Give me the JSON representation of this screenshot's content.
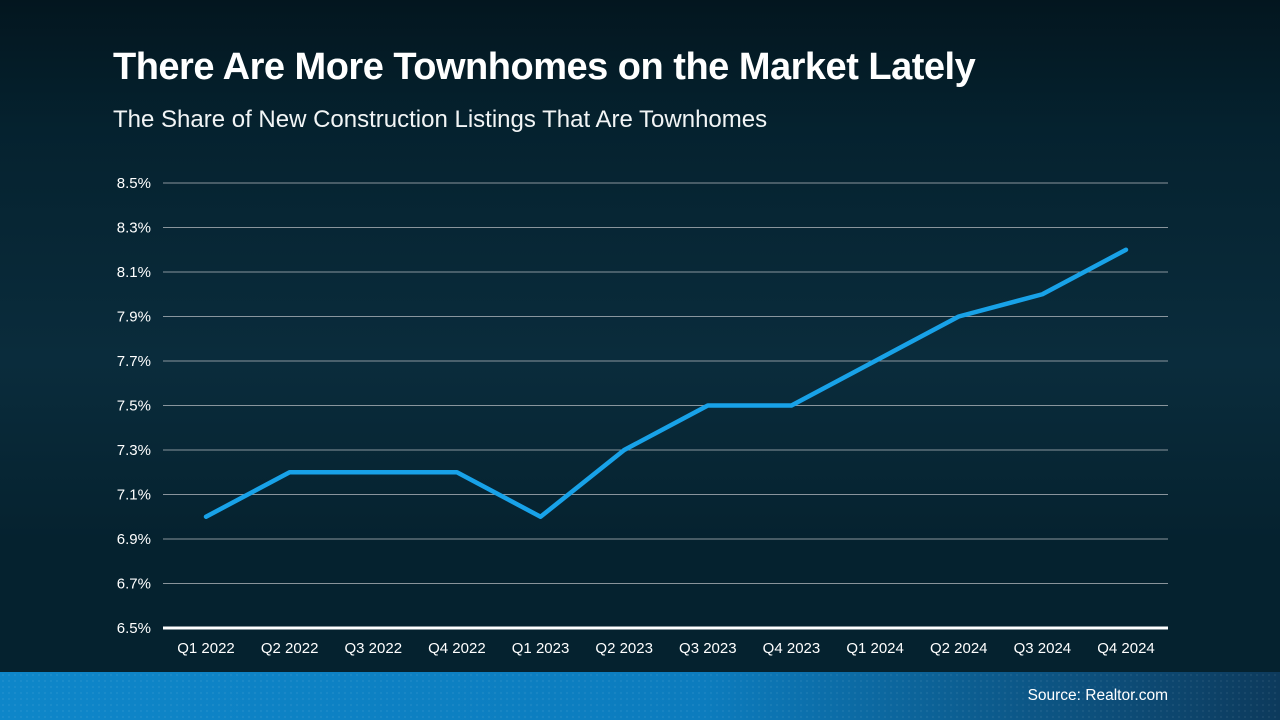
{
  "header": {
    "title": "There Are More Townhomes on the Market Lately",
    "subtitle": "The Share of New Construction Listings That Are Townhomes"
  },
  "footer": {
    "source": "Source: Realtor.com"
  },
  "theme": {
    "background_top": "#03161f",
    "background_mid": "#0a2c3c",
    "background_base": "#05222f",
    "line_color": "#18a2e8",
    "gridline_color": "#aab1b7",
    "axis_color": "#ffffff",
    "text_color": "#ffffff",
    "footer_gradient": [
      "#0e86c9",
      "#0c7cbe",
      "#0d3a5c"
    ]
  },
  "chart_data": {
    "type": "line",
    "title": "There Are More Townhomes on the Market Lately",
    "subtitle": "The Share of New Construction Listings That Are Townhomes",
    "categories": [
      "Q1 2022",
      "Q2 2022",
      "Q3 2022",
      "Q4 2022",
      "Q1 2023",
      "Q2 2023",
      "Q3 2023",
      "Q4 2023",
      "Q1 2024",
      "Q2 2024",
      "Q3 2024",
      "Q4 2024"
    ],
    "series": [
      {
        "name": "Share of new construction listings that are townhomes",
        "values": [
          7.0,
          7.2,
          7.2,
          7.2,
          7.0,
          7.3,
          7.5,
          7.5,
          7.7,
          7.9,
          8.0,
          8.2
        ]
      }
    ],
    "ylim": [
      6.5,
      8.5
    ],
    "y_ticks": [
      8.5,
      8.3,
      8.1,
      7.9,
      7.7,
      7.5,
      7.3,
      7.1,
      6.9,
      6.7,
      6.5
    ],
    "y_tick_suffix": "%",
    "xlabel": "",
    "ylabel": "",
    "grid": "horizontal",
    "legend": "none",
    "source": "Source: Realtor.com"
  }
}
